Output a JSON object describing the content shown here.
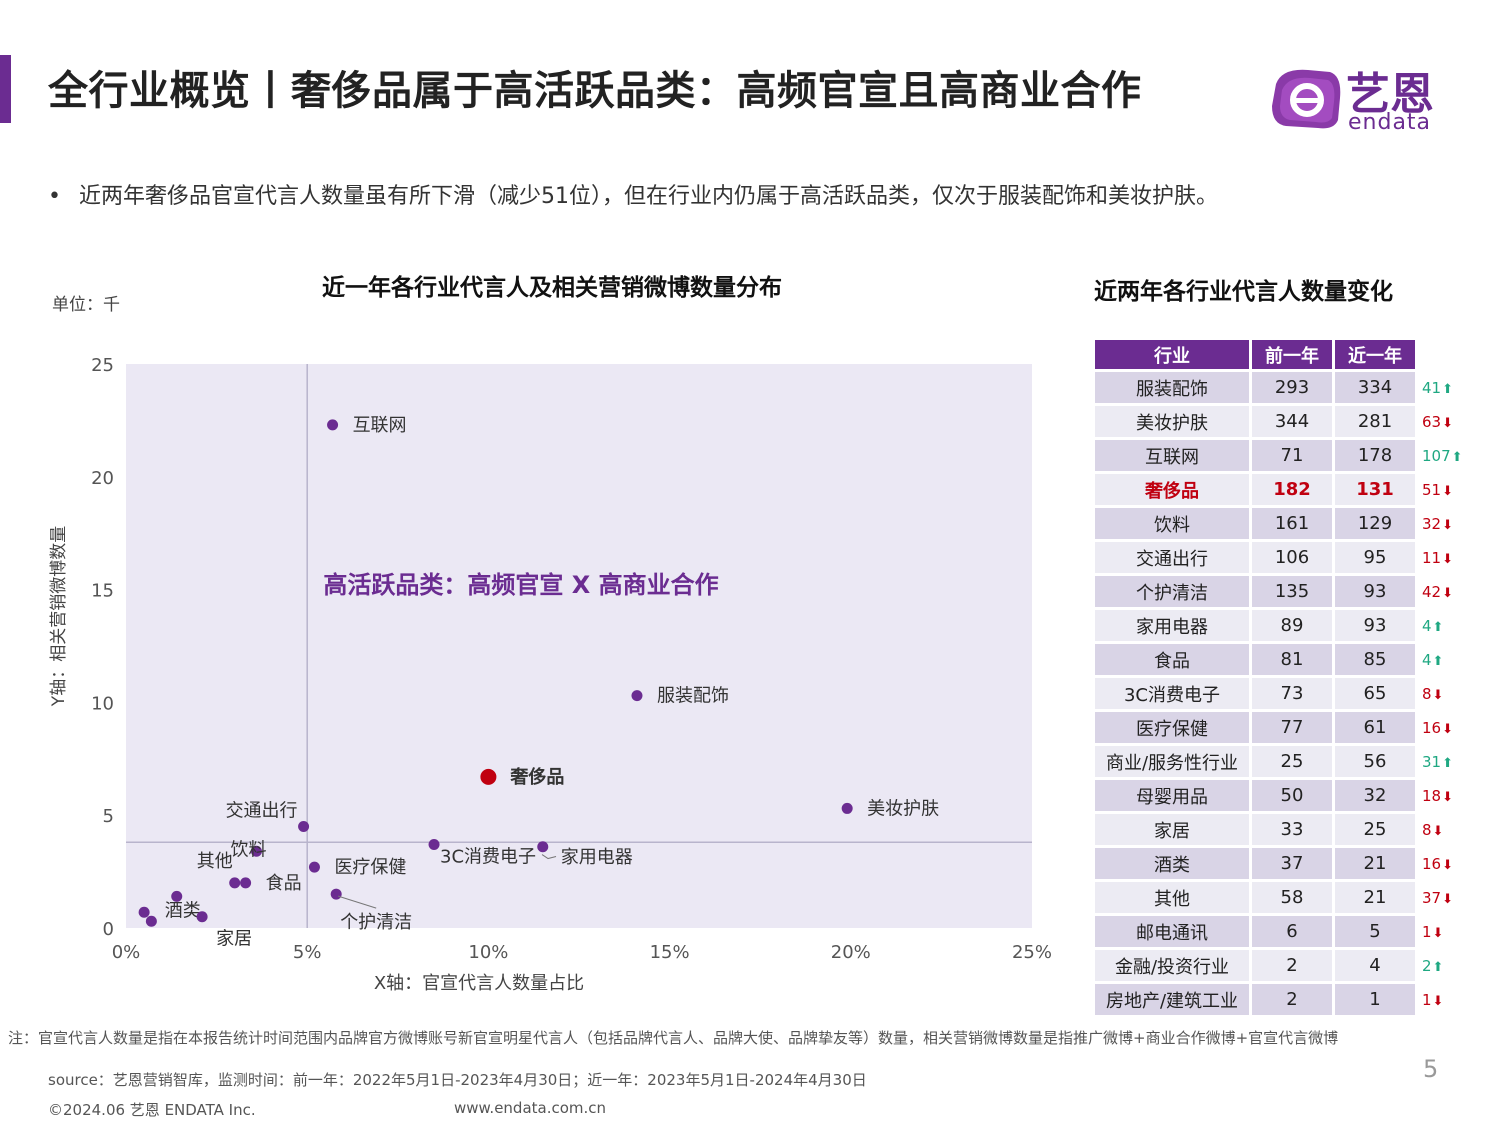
{
  "header": {
    "title": "全行业概览丨奢侈品属于高活跃品类：高频官宣且高商业合作",
    "logo_cn": "艺恩",
    "logo_en": "endata"
  },
  "bullet": "近两年奢侈品官宣代言人数量虽有所下滑（减少51位），但在行业内仍属于高活跃品类，仅次于服装配饰和美妆护肤。",
  "colors": {
    "accent": "#6b2c91",
    "highlight": "#c00010",
    "up": "#1fa882",
    "down": "#c00010",
    "quadrant": "#ebe8f4"
  },
  "chart_data": {
    "type": "scatter",
    "title": "近一年各行业代言人及相关营销微博数量分布",
    "unit_label": "单位：千",
    "xlabel": "X轴：官宣代言人数量占比",
    "ylabel": "Y轴：相关营销微博数量",
    "xlim": [
      0,
      25
    ],
    "ylim": [
      0,
      25
    ],
    "x_ticks": [
      "0%",
      "5%",
      "10%",
      "15%",
      "20%",
      "25%"
    ],
    "y_ticks": [
      "0",
      "5",
      "10",
      "15",
      "20",
      "25"
    ],
    "x_unit": "%",
    "y_unit": "千",
    "quadrant_lines": {
      "x": 5,
      "y": 3.8
    },
    "quadrant_label": "高活跃品类：高频官宣 X 高商业合作",
    "points": [
      {
        "label": "互联网",
        "x": 5.7,
        "y": 22.3
      },
      {
        "label": "服装配饰",
        "x": 14.1,
        "y": 10.3
      },
      {
        "label": "奢侈品",
        "x": 10.0,
        "y": 6.7,
        "highlight": true
      },
      {
        "label": "美妆护肤",
        "x": 19.9,
        "y": 5.3
      },
      {
        "label": "交通出行",
        "x": 4.9,
        "y": 4.5
      },
      {
        "label": "3C消费电子",
        "x": 8.5,
        "y": 3.7
      },
      {
        "label": "家用电器",
        "x": 11.5,
        "y": 3.6
      },
      {
        "label": "饮料",
        "x": 3.6,
        "y": 3.4
      },
      {
        "label": "医疗保健",
        "x": 5.2,
        "y": 2.7
      },
      {
        "label": "其他",
        "x": 3.0,
        "y": 2.0
      },
      {
        "label": "食品",
        "x": 3.3,
        "y": 2.0
      },
      {
        "label": "个护清洁",
        "x": 5.8,
        "y": 1.5
      },
      {
        "label": "酒类",
        "x": 1.4,
        "y": 1.4
      },
      {
        "label": "家居",
        "x": 2.1,
        "y": 0.5
      },
      {
        "label": "",
        "x": 0.5,
        "y": 0.7
      },
      {
        "label": "",
        "x": 0.7,
        "y": 0.3
      }
    ]
  },
  "table": {
    "title": "近两年各行业代言人数量变化",
    "headers": [
      "行业",
      "前一年",
      "近一年"
    ],
    "rows": [
      {
        "name": "服装配饰",
        "prev": "293",
        "curr": "334",
        "change": "41",
        "dir": "up"
      },
      {
        "name": "美妆护肤",
        "prev": "344",
        "curr": "281",
        "change": "63",
        "dir": "down"
      },
      {
        "name": "互联网",
        "prev": "71",
        "curr": "178",
        "change": "107",
        "dir": "up"
      },
      {
        "name": "奢侈品",
        "prev": "182",
        "curr": "131",
        "change": "51",
        "dir": "down",
        "highlight": true
      },
      {
        "name": "饮料",
        "prev": "161",
        "curr": "129",
        "change": "32",
        "dir": "down"
      },
      {
        "name": "交通出行",
        "prev": "106",
        "curr": "95",
        "change": "11",
        "dir": "down"
      },
      {
        "name": "个护清洁",
        "prev": "135",
        "curr": "93",
        "change": "42",
        "dir": "down"
      },
      {
        "name": "家用电器",
        "prev": "89",
        "curr": "93",
        "change": "4",
        "dir": "up"
      },
      {
        "name": "食品",
        "prev": "81",
        "curr": "85",
        "change": "4",
        "dir": "up"
      },
      {
        "name": "3C消费电子",
        "prev": "73",
        "curr": "65",
        "change": "8",
        "dir": "down"
      },
      {
        "name": "医疗保健",
        "prev": "77",
        "curr": "61",
        "change": "16",
        "dir": "down"
      },
      {
        "name": "商业/服务性行业",
        "prev": "25",
        "curr": "56",
        "change": "31",
        "dir": "up"
      },
      {
        "name": "母婴用品",
        "prev": "50",
        "curr": "32",
        "change": "18",
        "dir": "down"
      },
      {
        "name": "家居",
        "prev": "33",
        "curr": "25",
        "change": "8",
        "dir": "down"
      },
      {
        "name": "酒类",
        "prev": "37",
        "curr": "21",
        "change": "16",
        "dir": "down"
      },
      {
        "name": "其他",
        "prev": "58",
        "curr": "21",
        "change": "37",
        "dir": "down"
      },
      {
        "name": "邮电通讯",
        "prev": "6",
        "curr": "5",
        "change": "1",
        "dir": "down"
      },
      {
        "name": "金融/投资行业",
        "prev": "2",
        "curr": "4",
        "change": "2",
        "dir": "up"
      },
      {
        "name": "房地产/建筑工业",
        "prev": "2",
        "curr": "1",
        "change": "1",
        "dir": "down"
      }
    ]
  },
  "footer": {
    "note": "注：官宣代言人数量是指在本报告统计时间范围内品牌官方微博账号新官宣明星代言人（包括品牌代言人、品牌大使、品牌挚友等）数量，相关营销微博数量是指推广微博+商业合作微博+官宣代言微博",
    "source": "source：艺恩营销智库，监测时间：前一年：2022年5月1日-2023年4月30日；近一年：2023年5月1日-2024年4月30日",
    "page_number": "5",
    "copyright": "©2024.06  艺恩 ENDATA Inc.",
    "website": "www.endata.com.cn"
  }
}
